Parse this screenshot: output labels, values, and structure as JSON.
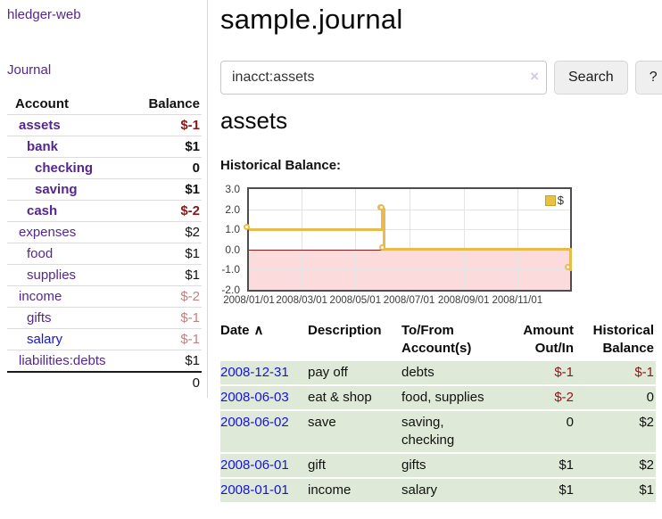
{
  "app": {
    "title": "hledger-web"
  },
  "colors": {
    "purple_link": "#54278e",
    "blue_link": "#1414dd",
    "negative_strong": "#8b1717",
    "negative_muted": "#c08080",
    "row_green": "#dfe9d8",
    "chart_pink": "#fbdbdb",
    "chart_gold": "#e8bb4a",
    "zero_line": "#8b1a1a"
  },
  "sidebar": {
    "nav_journal": "Journal",
    "accounts": {
      "header_account": "Account",
      "header_balance": "Balance",
      "rows": [
        {
          "account": "assets",
          "balance": "$-1",
          "level": 1,
          "emphasis": true,
          "tone": "negative-strong",
          "link": "visited"
        },
        {
          "account": "bank",
          "balance": "$1",
          "level": 2,
          "emphasis": true,
          "tone": "normal",
          "link": "visited"
        },
        {
          "account": "checking",
          "balance": "0",
          "level": 3,
          "emphasis": true,
          "tone": "normal",
          "link": "visited"
        },
        {
          "account": "saving",
          "balance": "$1",
          "level": 3,
          "emphasis": true,
          "tone": "normal",
          "link": "visited"
        },
        {
          "account": "cash",
          "balance": "$-2",
          "level": 2,
          "emphasis": true,
          "tone": "negative-strong",
          "link": "visited"
        },
        {
          "account": "expenses",
          "balance": "$2",
          "level": 1,
          "emphasis": false,
          "tone": "normal",
          "link": "visited"
        },
        {
          "account": "food",
          "balance": "$1",
          "level": 2,
          "emphasis": false,
          "tone": "normal",
          "link": "visited"
        },
        {
          "account": "supplies",
          "balance": "$1",
          "level": 2,
          "emphasis": false,
          "tone": "normal",
          "link": "visited"
        },
        {
          "account": "income",
          "balance": "$-2",
          "level": 1,
          "emphasis": false,
          "tone": "negative-muted",
          "link": "visited"
        },
        {
          "account": "gifts",
          "balance": "$-1",
          "level": 2,
          "emphasis": false,
          "tone": "negative-muted",
          "link": "visited"
        },
        {
          "account": "salary",
          "balance": "$-1",
          "level": 2,
          "emphasis": false,
          "tone": "negative-muted",
          "link": "new"
        },
        {
          "account": "liabilities:debts",
          "balance": "$1",
          "level": 1,
          "emphasis": false,
          "tone": "normal",
          "link": "visited"
        }
      ],
      "total": "0"
    }
  },
  "main": {
    "title": "sample.journal",
    "search": {
      "value": "inacct:assets",
      "clear_icon": "×",
      "button_label": "Search",
      "help_label": "?"
    },
    "account_heading": "assets",
    "chart_title": "Historical Balance:"
  },
  "chart_data": {
    "type": "line",
    "step": true,
    "series_label": "$",
    "series": [
      {
        "name": "$",
        "points": [
          [
            "2008-01-01",
            1
          ],
          [
            "2008-06-01",
            2
          ],
          [
            "2008-06-02",
            2
          ],
          [
            "2008-06-03",
            0
          ],
          [
            "2008-12-31",
            -1
          ]
        ]
      }
    ],
    "x_range": {
      "start": "2008-01-01",
      "end": "2008-12-31"
    },
    "ylim": [
      -2.0,
      3.0
    ],
    "yticks": [
      3.0,
      2.0,
      1.0,
      0.0,
      -1.0,
      -2.0
    ],
    "xticks": [
      "2008/01/01",
      "2008/03/01",
      "2008/05/01",
      "2008/07/01",
      "2008/09/01",
      "2008/11/01"
    ],
    "grid": true,
    "legend_position": "top-right",
    "negative_region_fill": "#fbdbdb",
    "line_color": "#e8bb4a"
  },
  "register": {
    "headers": {
      "date": "Date",
      "sort_asc_icon": "∧",
      "description": "Description",
      "accounts": "To/From Account(s)",
      "amount": "Amount Out/In",
      "balance": "Historical Balance"
    },
    "rows": [
      {
        "date": "2008-12-31",
        "description": "pay off",
        "accounts": "debts",
        "amount": "$-1",
        "amount_negative": true,
        "balance": "$-1",
        "balance_negative": true
      },
      {
        "date": "2008-06-03",
        "description": "eat & shop",
        "accounts": "food, supplies",
        "amount": "$-2",
        "amount_negative": true,
        "balance": "0",
        "balance_negative": false
      },
      {
        "date": "2008-06-02",
        "description": "save",
        "accounts": "saving, checking",
        "amount": "0",
        "amount_negative": false,
        "balance": "$2",
        "balance_negative": false
      },
      {
        "date": "2008-06-01",
        "description": "gift",
        "accounts": "gifts",
        "amount": "$1",
        "amount_negative": false,
        "balance": "$2",
        "balance_negative": false
      },
      {
        "date": "2008-01-01",
        "description": "income",
        "accounts": "salary",
        "amount": "$1",
        "amount_negative": false,
        "balance": "$1",
        "balance_negative": false
      }
    ]
  }
}
